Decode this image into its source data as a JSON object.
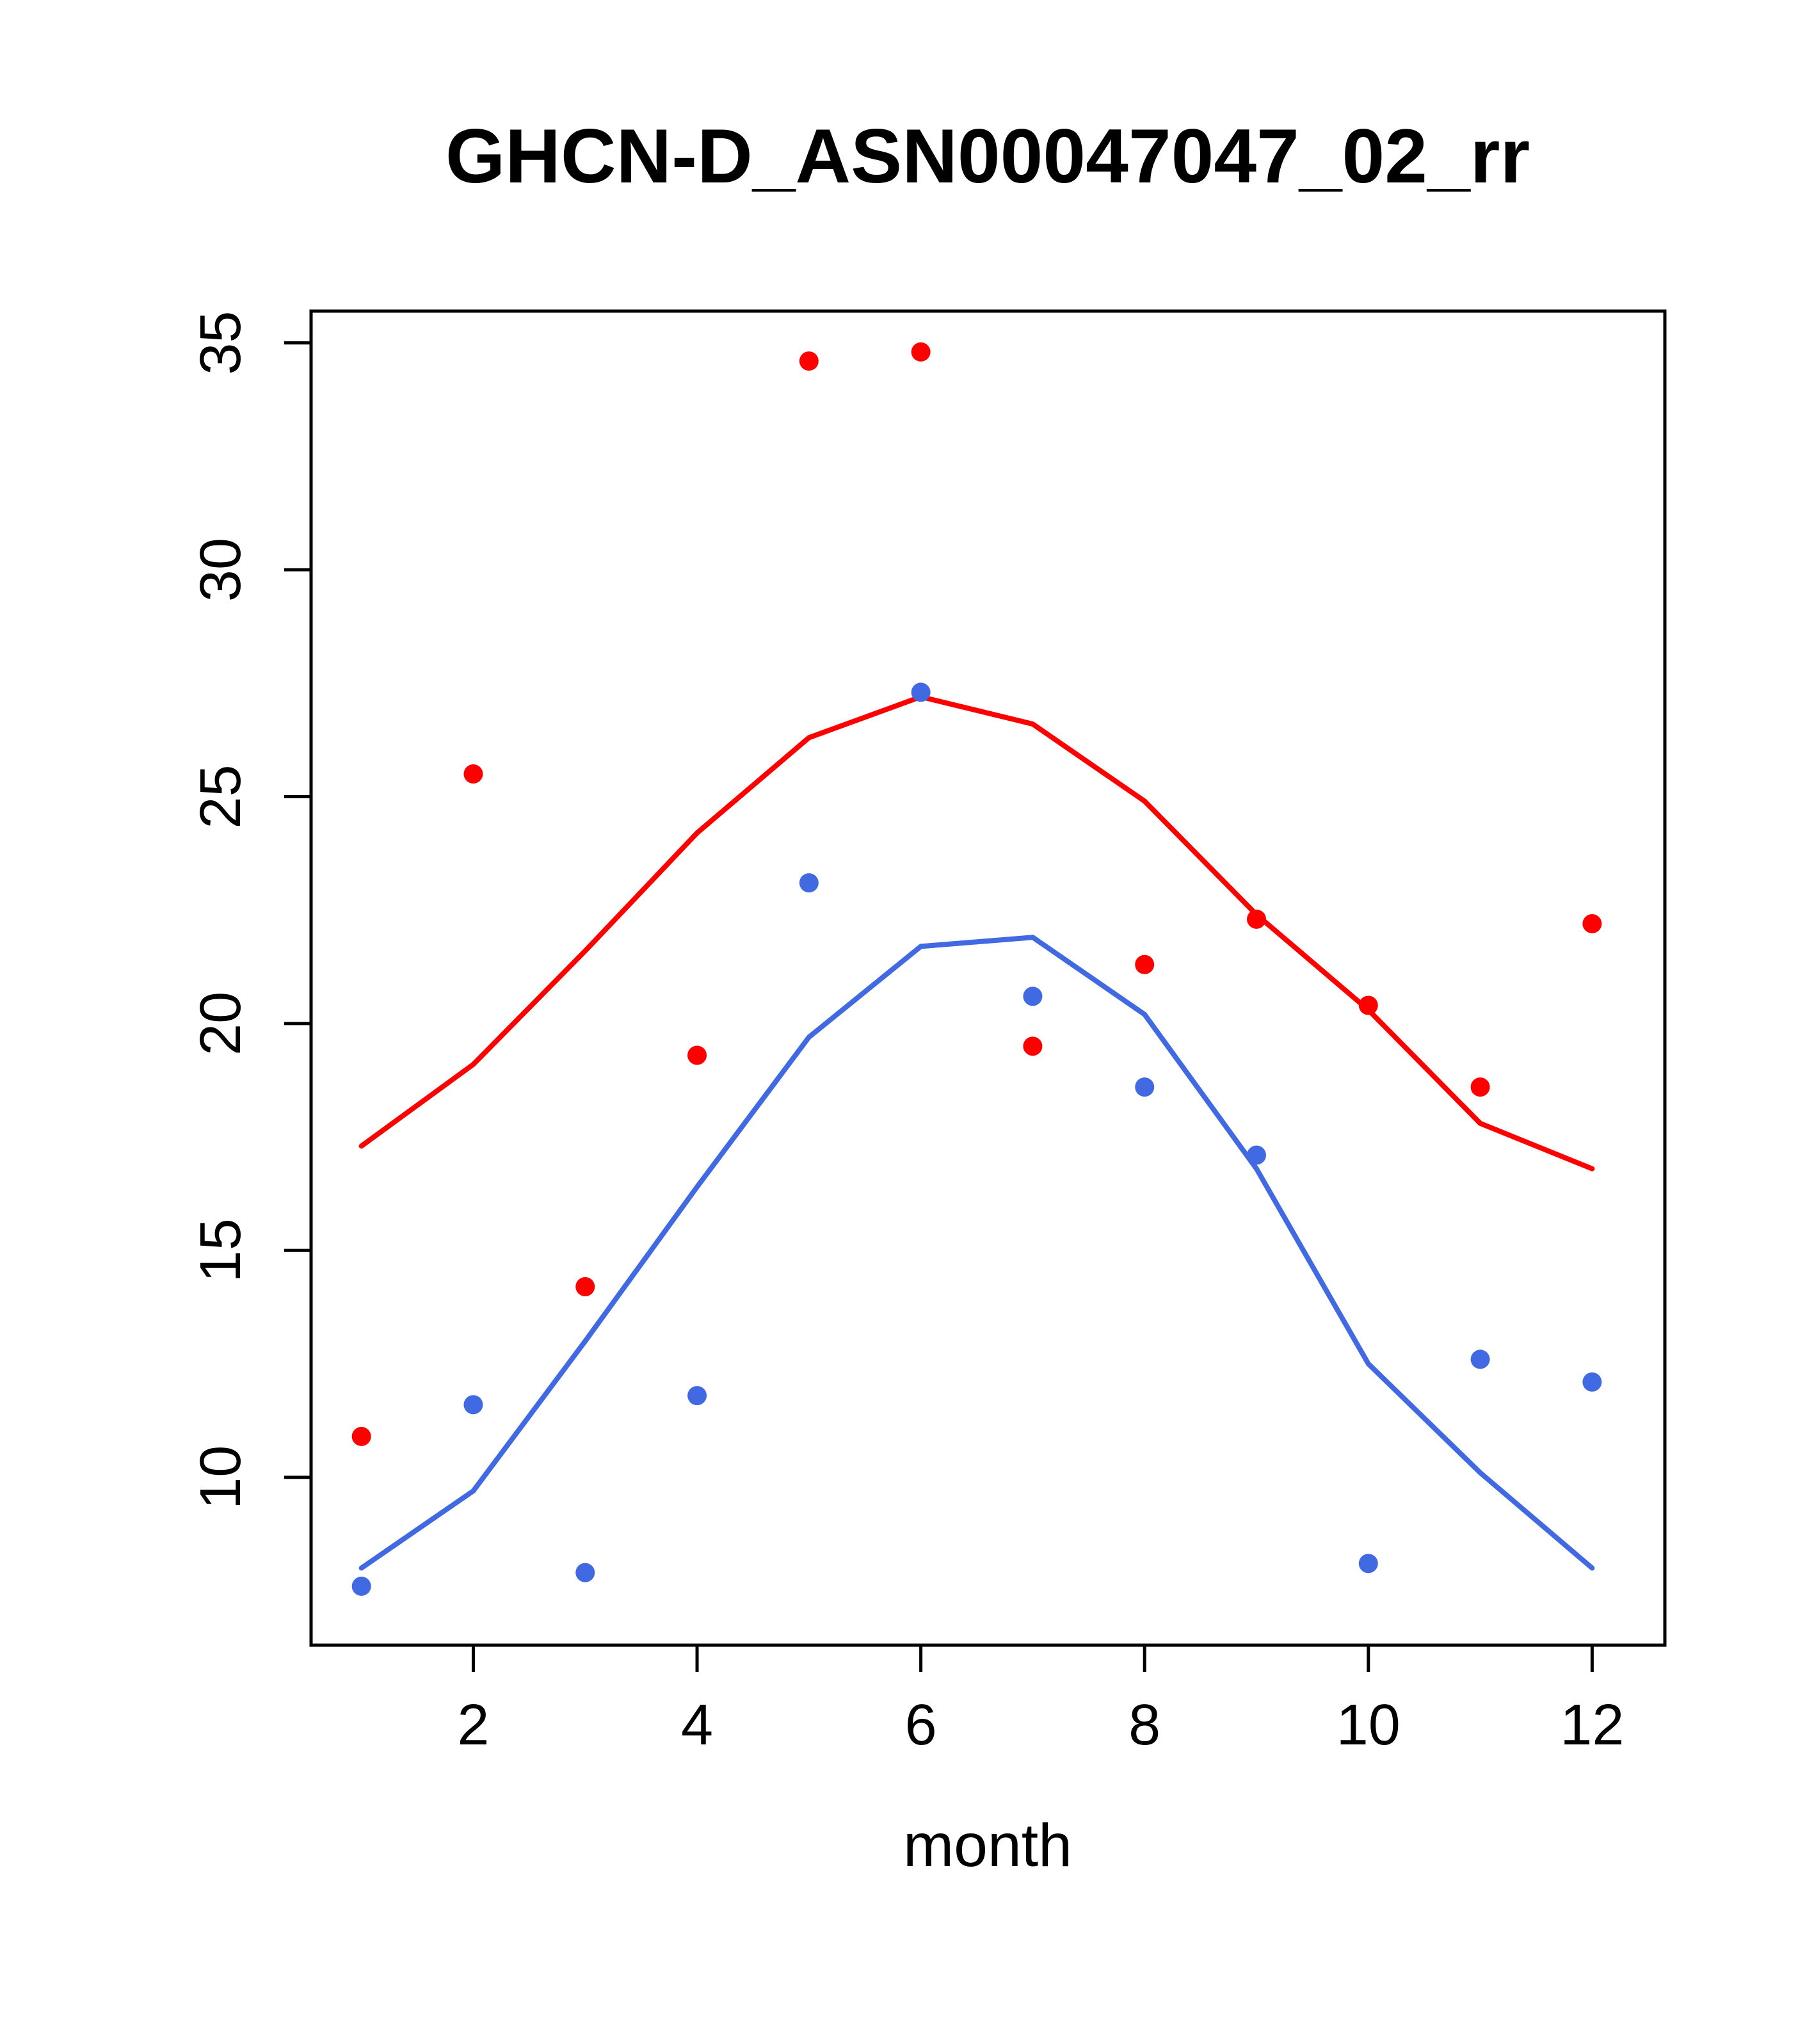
{
  "title": "GHCN-D_ASN00047047_02_rr",
  "chart_data": {
    "type": "scatter",
    "title": "GHCN-D_ASN00047047_02_rr",
    "xlabel": "month",
    "ylabel": "",
    "xlim": [
      0.55,
      12.65
    ],
    "ylim": [
      6.3,
      35.7
    ],
    "x_ticks": [
      2,
      4,
      6,
      8,
      10,
      12
    ],
    "y_ticks": [
      10,
      15,
      20,
      25,
      30,
      35
    ],
    "grid": false,
    "legend": "none",
    "months": [
      1,
      2,
      3,
      4,
      5,
      6,
      7,
      8,
      9,
      10,
      11,
      12
    ],
    "series": [
      {
        "name": "red-points",
        "kind": "points",
        "color": "#ff0000",
        "values": [
          10.9,
          25.5,
          14.2,
          19.3,
          34.6,
          34.8,
          19.5,
          21.3,
          22.3,
          20.4,
          18.6,
          22.2
        ]
      },
      {
        "name": "blue-points",
        "kind": "points",
        "color": "#4169e1",
        "values": [
          7.6,
          11.6,
          7.9,
          11.8,
          23.1,
          27.3,
          20.6,
          18.6,
          17.1,
          8.1,
          12.6,
          12.1
        ]
      },
      {
        "name": "red-line",
        "kind": "line",
        "color": "#ff0000",
        "values": [
          17.3,
          19.1,
          21.6,
          24.2,
          26.3,
          27.2,
          26.6,
          24.9,
          22.4,
          20.3,
          17.8,
          16.8
        ]
      },
      {
        "name": "blue-line",
        "kind": "line",
        "color": "#4169e1",
        "values": [
          8.0,
          9.7,
          13.0,
          16.4,
          19.7,
          21.7,
          21.9,
          20.2,
          16.8,
          12.5,
          10.1,
          8.0
        ]
      }
    ]
  }
}
